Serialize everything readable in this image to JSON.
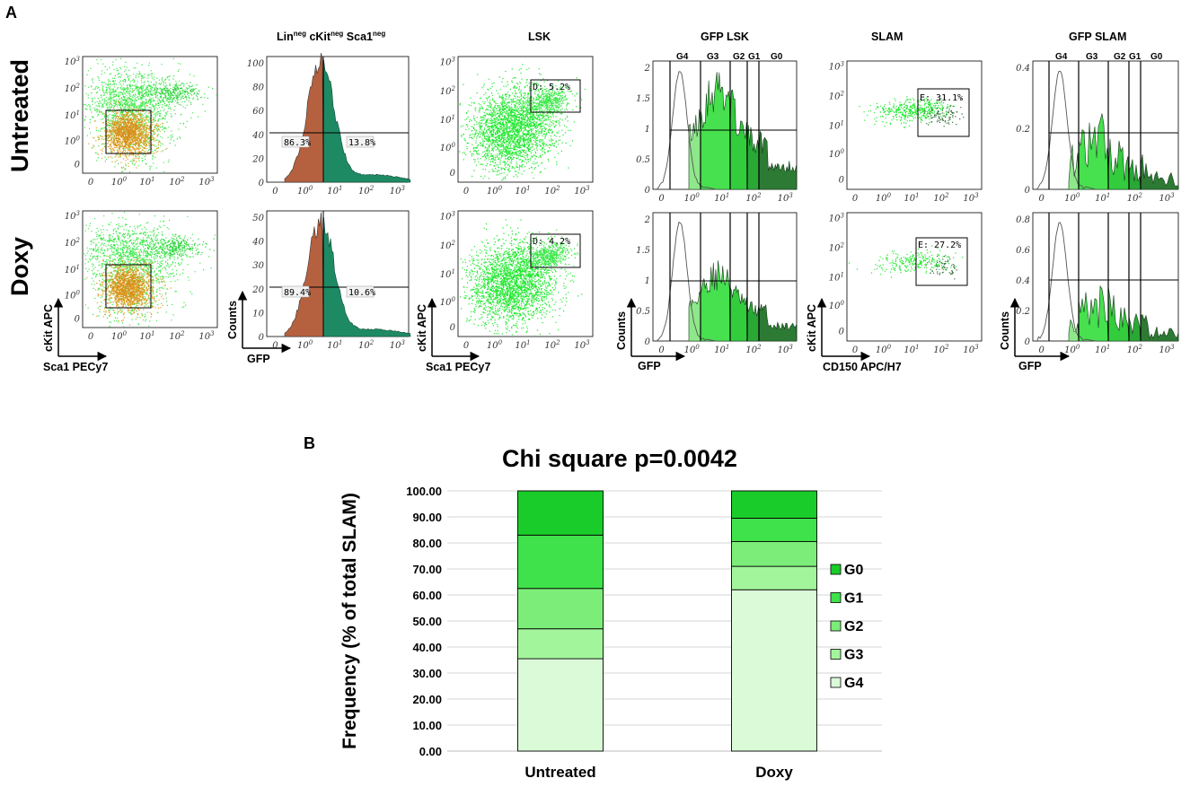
{
  "panel_a": {
    "label": "A",
    "row_labels": [
      "Untreated",
      "Doxy"
    ],
    "column_titles": {
      "lin_neg": {
        "main": "Lin",
        "sup1": "neg",
        "mid1": " cKit",
        "sup2": "neg",
        "mid2": " Sca1",
        "sup3": "neg"
      },
      "lsk": "LSK",
      "gfp_lsk": "GFP LSK",
      "slam": "SLAM",
      "gfp_slam": "GFP SLAM"
    },
    "phase_labels": [
      "G4",
      "G3",
      "G2",
      "G1",
      "G0"
    ],
    "gfp_hist_untreated": {
      "left_pct": "86.3%",
      "right_pct": "13.8%"
    },
    "gfp_hist_doxy": {
      "left_pct": "89.4%",
      "right_pct": "10.6%"
    },
    "lsk_gate_untreated": "D: 5.2%",
    "lsk_gate_doxy": "D: 4.2%",
    "slam_gate_untreated": "E: 31.1%",
    "slam_gate_doxy": "E: 27.2%",
    "axes": {
      "ckit_apc": "cKit APC",
      "sca1_pecy7": "Sca1 PECy7",
      "counts": "Counts",
      "gfp": "GFP",
      "cd150": "CD150 APC/H7"
    },
    "log_ticks": [
      "0",
      "10",
      "10",
      "10",
      "10"
    ],
    "log_exps": [
      "",
      "0",
      "1",
      "2",
      "3"
    ],
    "y_ticks_hist_u": [
      "0",
      "20",
      "40",
      "60",
      "80",
      "100"
    ],
    "y_ticks_hist_d": [
      "0",
      "10",
      "20",
      "30",
      "40",
      "50"
    ],
    "y_ticks_gfplsk": [
      "0",
      "0.5",
      "1",
      "1.5",
      "2"
    ],
    "y_ticks_gfpslam_u": [
      "0",
      "0.2",
      "0.4"
    ],
    "y_ticks_gfpslam_d": [
      "0",
      "0.2",
      "0.4",
      "0.6",
      "0.8"
    ]
  },
  "panel_b": {
    "label": "B",
    "title": "Chi square p=0.0042",
    "ylabel": "Frequency (% of total SLAM)",
    "legend_title": ""
  },
  "chart_data": {
    "type": "bar",
    "stacked": true,
    "title": "Chi square p=0.0042",
    "xlabel": "",
    "ylabel": "Frequency (% of total SLAM)",
    "ylim": [
      0,
      100
    ],
    "yticks": [
      "0.00",
      "10.00",
      "20.00",
      "30.00",
      "40.00",
      "50.00",
      "60.00",
      "70.00",
      "80.00",
      "90.00",
      "100.00"
    ],
    "categories": [
      "Untreated",
      "Doxy"
    ],
    "series": [
      {
        "name": "G4",
        "color": "#dafad8",
        "values": [
          35.5,
          62.0
        ]
      },
      {
        "name": "G3",
        "color": "#a3f59c",
        "values": [
          11.5,
          9.0
        ]
      },
      {
        "name": "G2",
        "color": "#7ded7a",
        "values": [
          15.5,
          9.5
        ]
      },
      {
        "name": "G1",
        "color": "#3fe24a",
        "values": [
          20.5,
          9.0
        ]
      },
      {
        "name": "G0",
        "color": "#1acc2a",
        "values": [
          17.0,
          10.5
        ]
      }
    ],
    "legend_order": [
      "G0",
      "G1",
      "G2",
      "G3",
      "G4"
    ],
    "grid": true,
    "legend_position": "right"
  }
}
